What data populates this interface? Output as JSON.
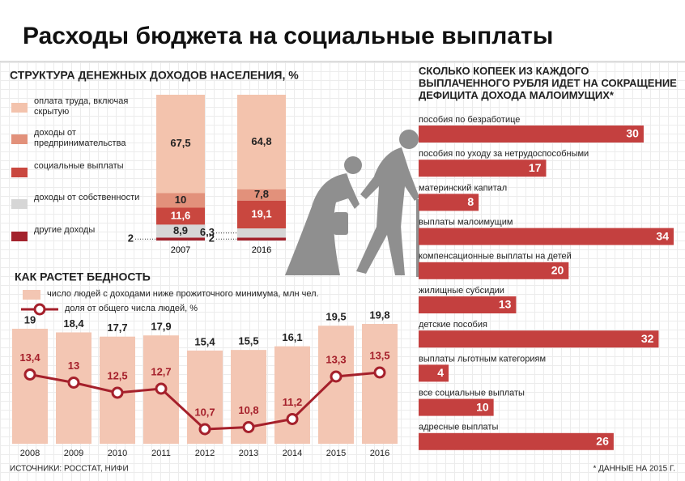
{
  "title": "Расходы бюджета на социальные выплаты",
  "source": "ИСТОЧНИКИ: РОССТАТ, НИФИ",
  "footnote": "* ДАННЫЕ НА 2015 Г.",
  "chart_data": [
    {
      "type": "stacked-bar",
      "title": "СТРУКТУРА ДЕНЕЖНЫХ ДОХОДОВ НАСЕЛЕНИЯ, %",
      "categories": [
        "2007",
        "2016"
      ],
      "series": [
        {
          "name": "оплата труда, включая скрытую",
          "color": "#f3c3ad",
          "values": [
            67.5,
            64.8
          ],
          "value_labels": [
            "67,5",
            "64,8"
          ]
        },
        {
          "name": "доходы от предпринимательства",
          "color": "#e2917b",
          "values": [
            10,
            7.8
          ],
          "value_labels": [
            "10",
            "7,8"
          ]
        },
        {
          "name": "социальные выплаты",
          "color": "#c9473f",
          "values": [
            11.6,
            19.1
          ],
          "value_labels": [
            "11,6",
            "19,1"
          ]
        },
        {
          "name": "доходы от собственности",
          "color": "#d6d6d6",
          "values": [
            8.9,
            6.3
          ],
          "value_labels": [
            "8,9",
            "6,3"
          ]
        },
        {
          "name": "другие доходы",
          "color": "#a3222c",
          "values": [
            2,
            2
          ]
        }
      ]
    },
    {
      "type": "bar-line",
      "title": "КАК РАСТЕТ БЕДНОСТЬ",
      "categories": [
        "2008",
        "2009",
        "2010",
        "2011",
        "2012",
        "2013",
        "2014",
        "2015",
        "2016"
      ],
      "series": [
        {
          "name": "число людей с доходами ниже прожиточного минимума, млн чел.",
          "color": "#f3c6b3",
          "values": [
            19,
            18.4,
            17.7,
            17.9,
            15.4,
            15.5,
            16.1,
            19.5,
            19.8
          ],
          "value_labels": [
            "19",
            "18,4",
            "17,7",
            "17,9",
            "15,4",
            "15,5",
            "16,1",
            "19,5",
            "19,8"
          ]
        },
        {
          "name": "доля от общего числа людей, %",
          "color": "#a5202b",
          "type": "line",
          "axis": "y2",
          "values": [
            13.4,
            13,
            12.5,
            12.7,
            10.7,
            10.8,
            11.2,
            13.3,
            13.5
          ],
          "value_labels": [
            "13,4",
            "13",
            "12,5",
            "12,7",
            "10,7",
            "10,8",
            "11,2",
            "13,3",
            "13,5"
          ]
        }
      ]
    },
    {
      "type": "hbar",
      "title": "СКОЛЬКО КОПЕЕК ИЗ КАЖДОГО ВЫПЛАЧЕННОГО РУБЛЯ ИДЕТ НА СОКРАЩЕНИЕ ДЕФИЦИТА ДОХОДА МАЛОИМУЩИХ*",
      "color": "#c4403f",
      "categories": [
        "пособия по безработице",
        "пособия по уходу за нетрудоспособными",
        "материнский капитал",
        "выплаты малоимущим",
        "компенсационные выплаты на детей",
        "жилищные субсидии",
        "детские пособия",
        "выплаты льготным категориям",
        "все социальные выплаты",
        "адресные выплаты"
      ],
      "values": [
        30,
        17,
        8,
        34,
        20,
        13,
        32,
        4,
        10,
        26
      ]
    }
  ]
}
